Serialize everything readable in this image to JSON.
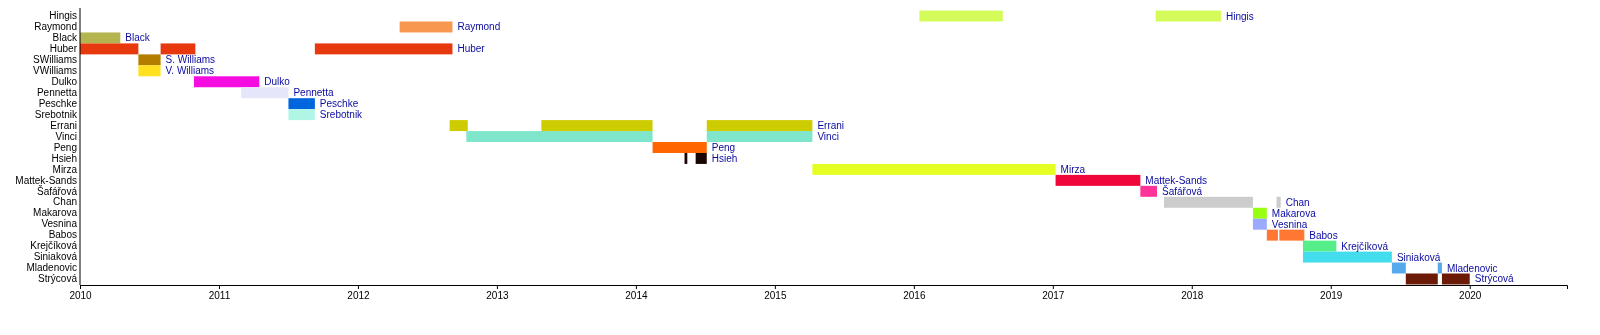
{
  "chart_data": {
    "type": "bar",
    "orientation": "horizontal",
    "categories": [
      "Hingis",
      "Raymond",
      "Black",
      "Huber",
      "SWilliams",
      "VWilliams",
      "Dulko",
      "Pennetta",
      "Peschke",
      "Srebotnik",
      "Errani",
      "Vinci",
      "Peng",
      "Hsieh",
      "Mirza",
      "Mattek-Sands",
      "Šafářová",
      "Chan",
      "Makarova",
      "Vesnina",
      "Babos",
      "Krejčíková",
      "Siniaková",
      "Mladenovic",
      "Strýcová"
    ],
    "xlim": [
      2010,
      2020.7
    ],
    "xticks": [
      2010,
      2011,
      2012,
      2013,
      2014,
      2015,
      2016,
      2017,
      2018,
      2019,
      2020
    ],
    "series": [
      {
        "base": [
          2016.04,
          2012.3,
          2010,
          2010,
          2010.42,
          2010.42,
          2010.82,
          2011.16,
          2011.5,
          2011.5,
          2012.66,
          2012.78,
          2014.12,
          2014.35,
          2015.27,
          2017.02,
          2017.63,
          2017.8,
          2018.44,
          2018.44,
          2018.54,
          2018.8,
          2018.8,
          2019.44,
          2019.54
        ],
        "values": [
          0.6,
          0.38,
          0.29,
          0.42,
          0.16,
          0.16,
          0.47,
          0.34,
          0.19,
          0.19,
          0.13,
          1.34,
          0.39,
          0.02,
          1.75,
          0.61,
          0.12,
          0.64,
          0.1,
          0.1,
          0.08,
          0.24,
          0.64,
          0.1,
          0.23
        ],
        "colors": [
          "#d4fb5a",
          "#f89850",
          "#b5b550",
          "#e8380d",
          "#b37e00",
          "#ffe11f",
          "#f50ce0",
          "#e6e6fa",
          "#0066dd",
          "#b0f5e6",
          "#cccc00",
          "#7fe6cc",
          "#ff6600",
          "#1a0505",
          "#e6ff22",
          "#f0063a",
          "#ff3399",
          "#cccccc",
          "#99ff11",
          "#99aaff",
          "#ff7733",
          "#55ee88",
          "#44ddee",
          "#55aaee",
          "#6b1a05"
        ]
      },
      {
        "base": [
          2017.74,
          null,
          null,
          2010.58,
          null,
          null,
          null,
          null,
          null,
          null,
          2013.32,
          2014.51,
          null,
          2014.43,
          null,
          null,
          null,
          2018.61,
          null,
          null,
          2018.63,
          null,
          null,
          2019.77,
          2019.8
        ],
        "values": [
          0.47,
          null,
          null,
          0.25,
          null,
          null,
          null,
          null,
          null,
          null,
          0.8,
          0.76,
          null,
          0.08,
          null,
          null,
          null,
          0.03,
          null,
          null,
          0.18,
          null,
          null,
          0.03,
          0.2
        ],
        "colors": [
          "#d4fb5a",
          null,
          null,
          "#e8380d",
          null,
          null,
          null,
          null,
          null,
          null,
          "#cccc00",
          "#7fe6cc",
          null,
          "#1a0505",
          null,
          null,
          null,
          "#cccccc",
          null,
          null,
          "#ff7733",
          null,
          null,
          "#55aaee",
          "#6b1a05"
        ]
      },
      {
        "base": [
          null,
          null,
          null,
          2011.69,
          null,
          null,
          null,
          null,
          null,
          null,
          2014.51,
          null,
          null,
          null,
          null,
          null,
          null,
          null,
          null,
          null,
          null,
          null,
          null,
          null,
          null
        ],
        "values": [
          null,
          null,
          null,
          0.99,
          null,
          null,
          null,
          null,
          null,
          null,
          0.76,
          null,
          null,
          null,
          null,
          null,
          null,
          null,
          null,
          null,
          null,
          null,
          null,
          null,
          null
        ],
        "colors": [
          null,
          null,
          null,
          "#e8380d",
          null,
          null,
          null,
          null,
          null,
          null,
          "#cccc00",
          null,
          null,
          null,
          null,
          null,
          null,
          null,
          null,
          null,
          null,
          null,
          null,
          null,
          null
        ]
      }
    ],
    "annotations": [
      {
        "text": "Hingis",
        "x": 2018.21,
        "y": "Hingis"
      },
      {
        "text": "Raymond",
        "x": 2012.68,
        "y": "Raymond"
      },
      {
        "text": "Black",
        "x": 2010.29,
        "y": "Black"
      },
      {
        "text": "Huber",
        "x": 2012.68,
        "y": "Huber"
      },
      {
        "text": "S. Williams",
        "x": 2010.58,
        "y": "SWilliams"
      },
      {
        "text": "V. Williams",
        "x": 2010.58,
        "y": "VWilliams"
      },
      {
        "text": "Dulko",
        "x": 2011.29,
        "y": "Dulko"
      },
      {
        "text": "Pennetta",
        "x": 2011.5,
        "y": "Pennetta"
      },
      {
        "text": "Peschke",
        "x": 2011.69,
        "y": "Peschke"
      },
      {
        "text": "Srebotnik",
        "x": 2011.69,
        "y": "Srebotnik"
      },
      {
        "text": "Errani",
        "x": 2015.27,
        "y": "Errani"
      },
      {
        "text": "Vinci",
        "x": 2015.27,
        "y": "Vinci"
      },
      {
        "text": "Peng",
        "x": 2014.51,
        "y": "Peng"
      },
      {
        "text": "Hsieh",
        "x": 2014.51,
        "y": "Hsieh"
      },
      {
        "text": "Mirza",
        "x": 2017.02,
        "y": "Mirza"
      },
      {
        "text": "Mattek-Sands",
        "x": 2017.63,
        "y": "Mattek-Sands"
      },
      {
        "text": "Šafářová",
        "x": 2017.75,
        "y": "Šafářová"
      },
      {
        "text": "Chan",
        "x": 2018.64,
        "y": "Chan"
      },
      {
        "text": "Makarova",
        "x": 2018.54,
        "y": "Makarova"
      },
      {
        "text": "Vesnina",
        "x": 2018.54,
        "y": "Vesnina"
      },
      {
        "text": "Babos",
        "x": 2018.81,
        "y": "Babos"
      },
      {
        "text": "Krejčíková",
        "x": 2019.04,
        "y": "Krejčíková"
      },
      {
        "text": "Siniaková",
        "x": 2019.44,
        "y": "Siniaková"
      },
      {
        "text": "Mladenovic",
        "x": 2019.8,
        "y": "Mladenovic"
      },
      {
        "text": "Strýcová",
        "x": 2020.0,
        "y": "Strýcová"
      }
    ]
  }
}
